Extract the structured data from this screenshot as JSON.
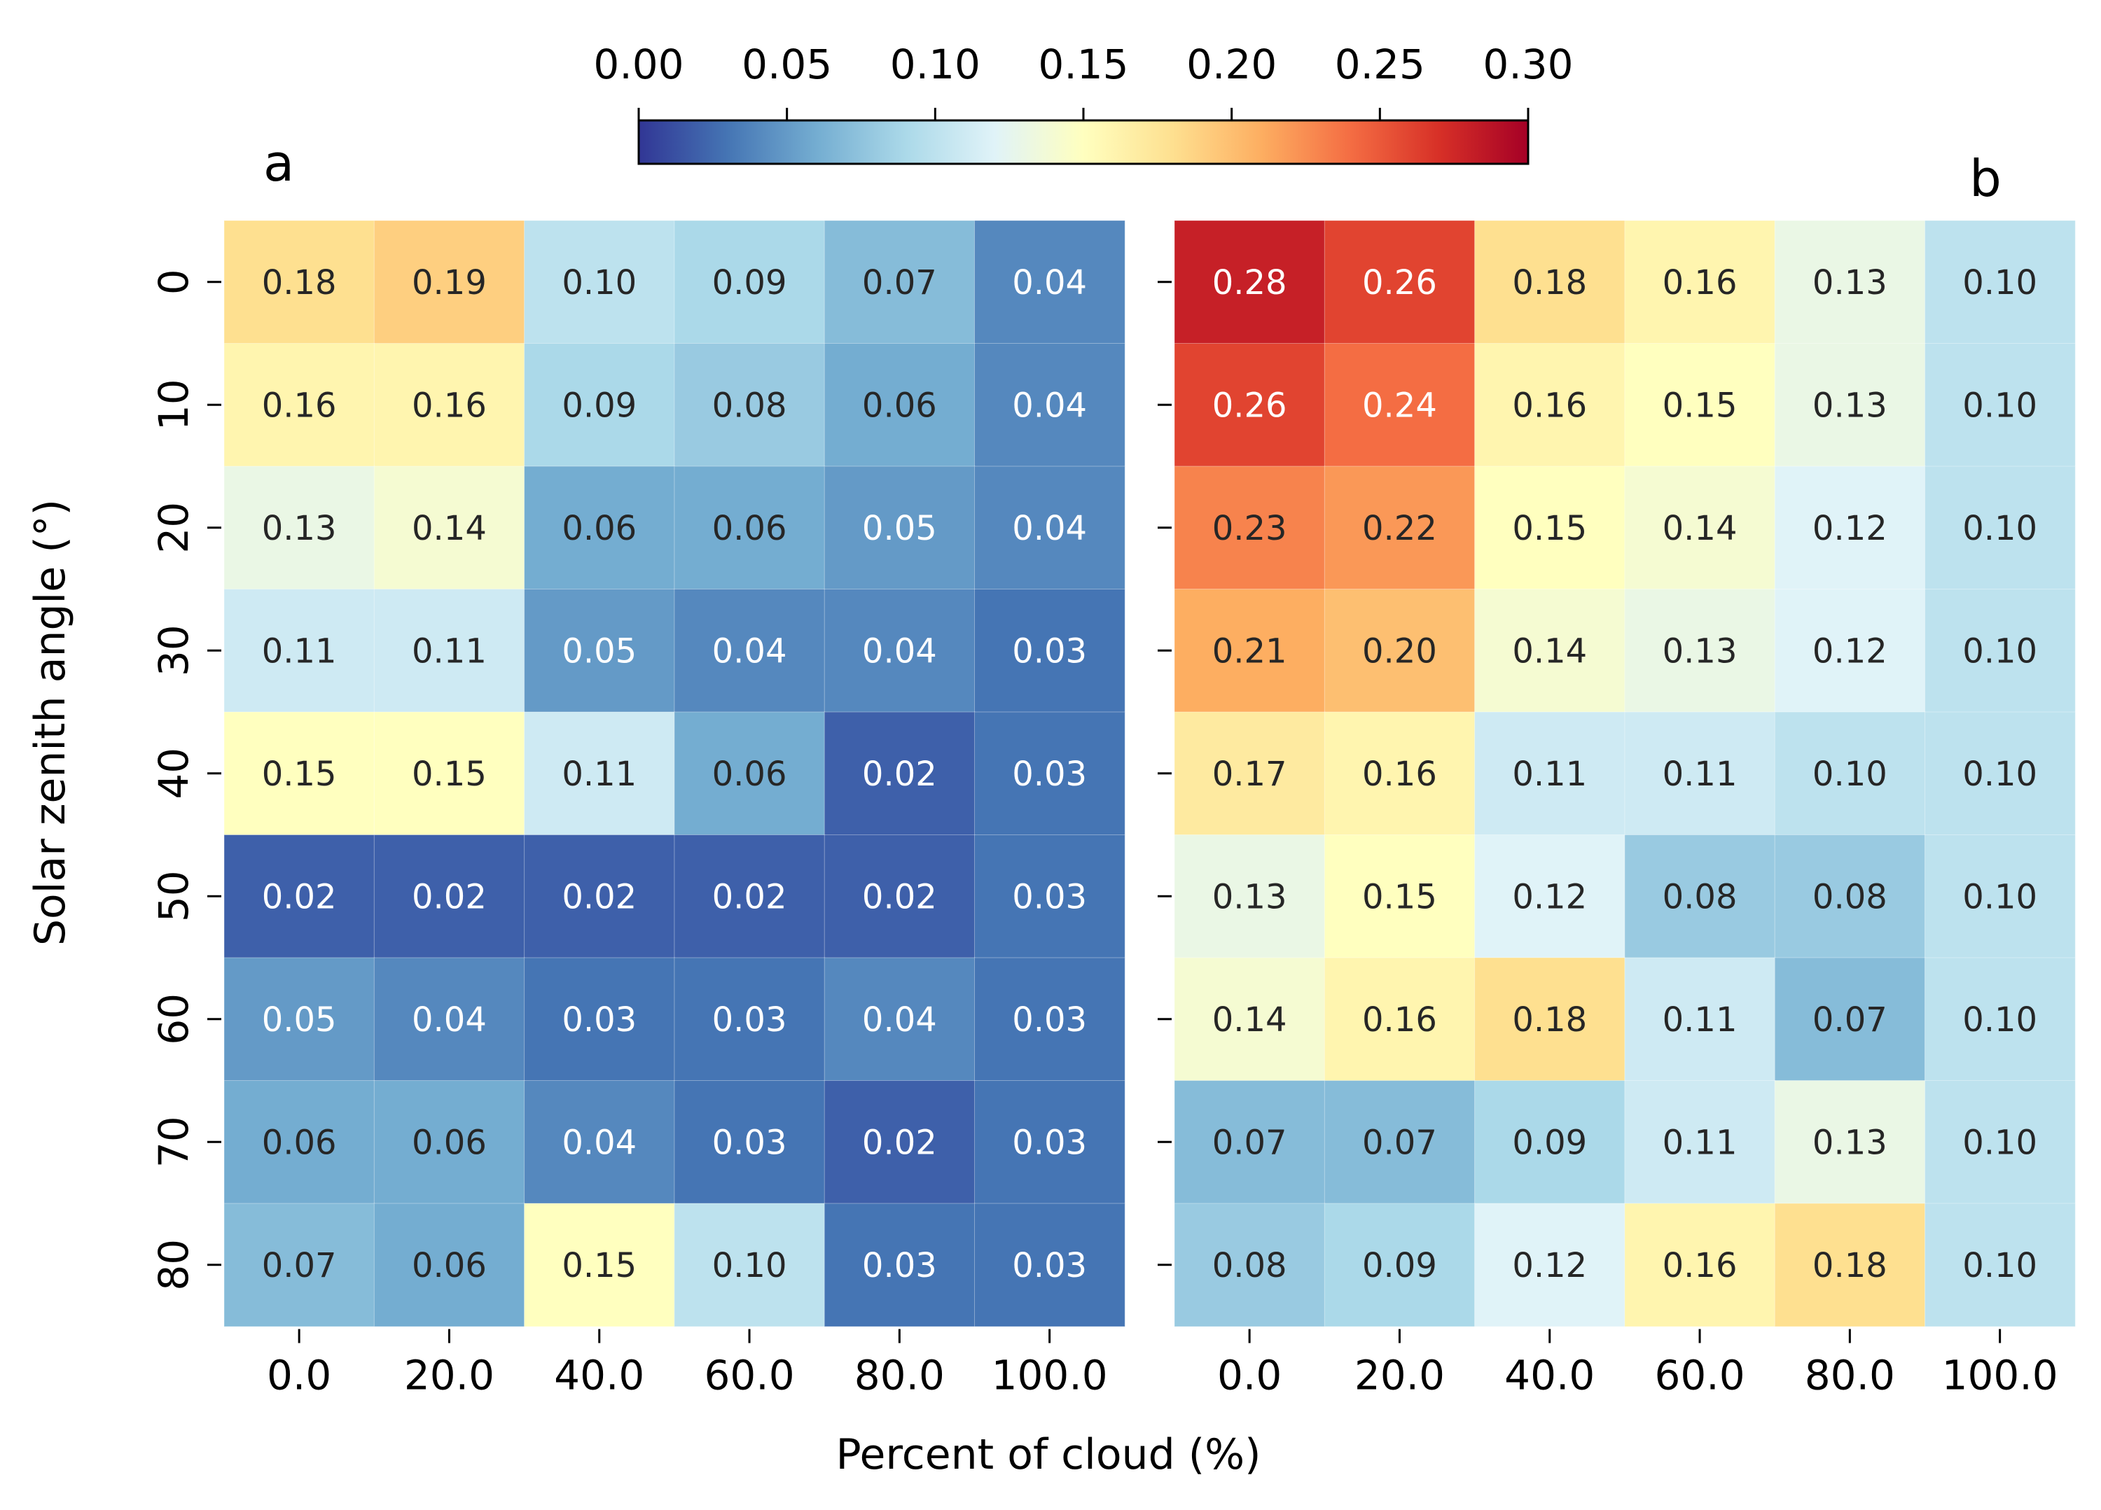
{
  "chart_data": [
    {
      "type": "heatmap",
      "panel_label": "a",
      "x_tick_labels": [
        "0.0",
        "20.0",
        "40.0",
        "60.0",
        "80.0",
        "100.0"
      ],
      "y_tick_labels": [
        "0",
        "10",
        "20",
        "30",
        "40",
        "50",
        "60",
        "70",
        "80"
      ],
      "values": [
        [
          0.18,
          0.19,
          0.1,
          0.09,
          0.07,
          0.04
        ],
        [
          0.16,
          0.16,
          0.09,
          0.08,
          0.06,
          0.04
        ],
        [
          0.13,
          0.14,
          0.06,
          0.06,
          0.05,
          0.04
        ],
        [
          0.11,
          0.11,
          0.05,
          0.04,
          0.04,
          0.03
        ],
        [
          0.15,
          0.15,
          0.11,
          0.06,
          0.02,
          0.03
        ],
        [
          0.02,
          0.02,
          0.02,
          0.02,
          0.02,
          0.03
        ],
        [
          0.05,
          0.04,
          0.03,
          0.03,
          0.04,
          0.03
        ],
        [
          0.06,
          0.06,
          0.04,
          0.03,
          0.02,
          0.03
        ],
        [
          0.07,
          0.06,
          0.15,
          0.1,
          0.03,
          0.03
        ]
      ]
    },
    {
      "type": "heatmap",
      "panel_label": "b",
      "x_tick_labels": [
        "0.0",
        "20.0",
        "40.0",
        "60.0",
        "80.0",
        "100.0"
      ],
      "y_tick_labels": [
        "0",
        "10",
        "20",
        "30",
        "40",
        "50",
        "60",
        "70",
        "80"
      ],
      "values": [
        [
          0.28,
          0.26,
          0.18,
          0.16,
          0.13,
          0.1
        ],
        [
          0.26,
          0.24,
          0.16,
          0.15,
          0.13,
          0.1
        ],
        [
          0.23,
          0.22,
          0.15,
          0.14,
          0.12,
          0.1
        ],
        [
          0.21,
          0.2,
          0.14,
          0.13,
          0.12,
          0.1
        ],
        [
          0.17,
          0.16,
          0.11,
          0.11,
          0.1,
          0.1
        ],
        [
          0.13,
          0.15,
          0.12,
          0.08,
          0.08,
          0.1
        ],
        [
          0.14,
          0.16,
          0.18,
          0.11,
          0.07,
          0.1
        ],
        [
          0.07,
          0.07,
          0.09,
          0.11,
          0.13,
          0.1
        ],
        [
          0.08,
          0.09,
          0.12,
          0.16,
          0.18,
          0.1
        ]
      ]
    }
  ],
  "shared": {
    "xlabel": "Percent of cloud (%)",
    "ylabel": "Solar zenith angle (°)",
    "colorbar": {
      "vmin": 0.0,
      "vmax": 0.3,
      "tick_values": [
        0.0,
        0.05,
        0.1,
        0.15,
        0.2,
        0.25,
        0.3
      ],
      "tick_labels": [
        "0.00",
        "0.05",
        "0.10",
        "0.15",
        "0.20",
        "0.25",
        "0.30"
      ],
      "colormap": "RdYlBu_r",
      "color_stops": [
        "#313695",
        "#4575b4",
        "#74add1",
        "#abd9e9",
        "#e0f3f8",
        "#ffffbf",
        "#fee090",
        "#fdae61",
        "#f46d43",
        "#d73027",
        "#a50026"
      ]
    }
  }
}
